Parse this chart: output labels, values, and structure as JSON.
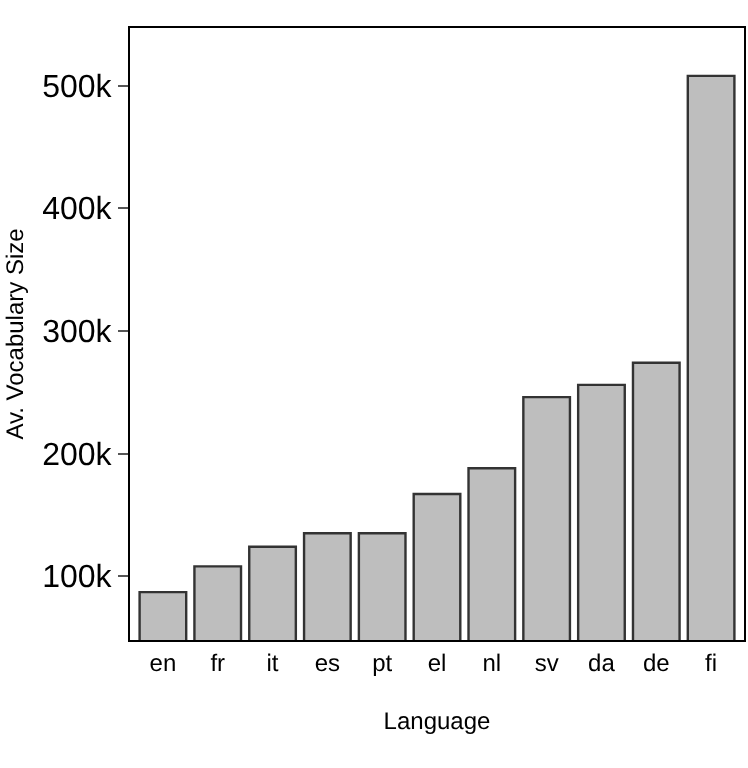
{
  "chart_data": {
    "type": "bar",
    "xlabel": "Language",
    "ylabel": "Av. Vocabulary Size",
    "categories": [
      "en",
      "fr",
      "it",
      "es",
      "pt",
      "el",
      "nl",
      "sv",
      "da",
      "de",
      "fi"
    ],
    "values": [
      87000,
      108000,
      124000,
      135000,
      135000,
      167000,
      188000,
      246000,
      256000,
      274000,
      508000
    ],
    "color": "#bebebe",
    "ylim": [
      48000,
      547000
    ],
    "yticks": [
      {
        "value": 100000,
        "label": "100k"
      },
      {
        "value": 200000,
        "label": "200k"
      },
      {
        "value": 300000,
        "label": "300k"
      },
      {
        "value": 400000,
        "label": "400k"
      },
      {
        "value": 500000,
        "label": "500k"
      }
    ]
  }
}
